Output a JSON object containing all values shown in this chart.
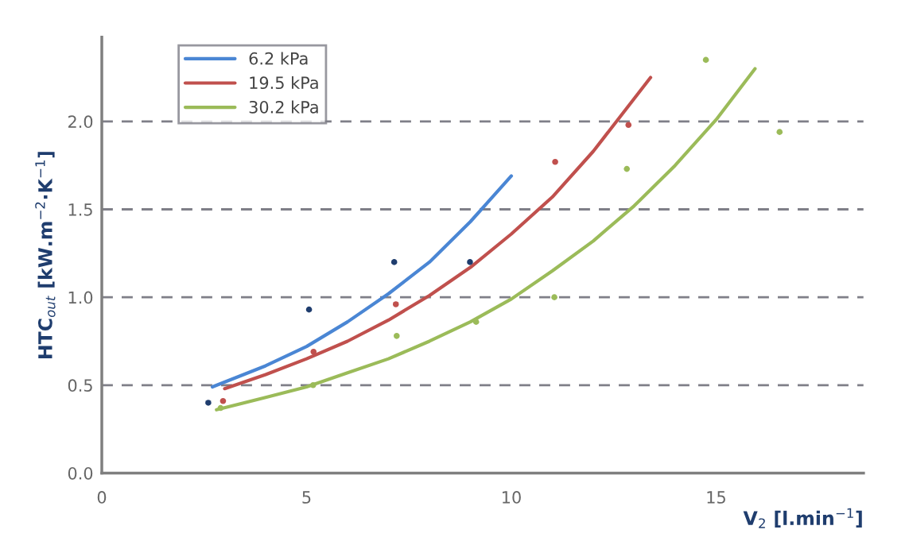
{
  "chart_data": {
    "type": "line",
    "xlabel": "V$_{2}$ [l.min$^{−1}$]",
    "ylabel": "HTC$_{out}$ [kW.m$^{−2}$·K$^{−1}$]",
    "xlim": [
      0,
      18.6
    ],
    "ylim": [
      0,
      2.48
    ],
    "xticks": [
      0,
      5,
      10,
      15
    ],
    "yticks": [
      {
        "value": 0,
        "label": "0.0"
      },
      {
        "value": 0.5,
        "label": "0.5"
      },
      {
        "value": 1,
        "label": "1.0"
      },
      {
        "value": 1.5,
        "label": "1.5"
      },
      {
        "value": 2,
        "label": "2.0"
      }
    ],
    "grid": "y",
    "legend": "top left",
    "marker": "none",
    "line_style": "solid",
    "series": [
      {
        "name": "6.2 kPa",
        "color": "#4a86d4",
        "x": [
          2.7,
          4,
          5,
          6,
          7,
          8,
          9,
          10
        ],
        "values": [
          0.49,
          0.61,
          0.72,
          0.86,
          1.02,
          1.2,
          1.43,
          1.69
        ]
      },
      {
        "name": "19.5 kPa",
        "color": "#c0504d",
        "x": [
          3,
          4,
          5,
          6,
          7,
          8,
          9,
          10,
          11,
          12,
          13.4
        ],
        "values": [
          0.48,
          0.56,
          0.65,
          0.75,
          0.87,
          1.01,
          1.17,
          1.36,
          1.57,
          1.83,
          2.25
        ]
      },
      {
        "name": "30.2 kPa",
        "color": "#9bbb59",
        "x": [
          2.8,
          4,
          5,
          6,
          7,
          8,
          9,
          10,
          11,
          12,
          13,
          14,
          15,
          15.95
        ],
        "values": [
          0.36,
          0.43,
          0.49,
          0.57,
          0.65,
          0.75,
          0.86,
          0.99,
          1.15,
          1.32,
          1.52,
          1.75,
          2.01,
          2.3
        ]
      },
      {
        "type": "scatter",
        "marker": "circle",
        "color": "#1f3d6e",
        "x": [
          2.6,
          5.06,
          7.14,
          8.99
        ],
        "values": [
          0.4,
          0.93,
          1.2,
          1.2
        ]
      },
      {
        "type": "scatter",
        "marker": "circle",
        "color": "#c0504d",
        "x": [
          2.96,
          5.17,
          7.18,
          11.07,
          12.86
        ],
        "values": [
          0.41,
          0.69,
          0.96,
          1.77,
          1.98
        ]
      },
      {
        "type": "scatter",
        "marker": "circle",
        "color": "#9bbb59",
        "x": [
          2.9,
          5.16,
          7.2,
          9.14,
          11.05,
          12.82,
          14.75,
          16.55
        ],
        "values": [
          0.37,
          0.5,
          0.78,
          0.86,
          1.0,
          1.73,
          2.35,
          1.94
        ]
      }
    ]
  }
}
